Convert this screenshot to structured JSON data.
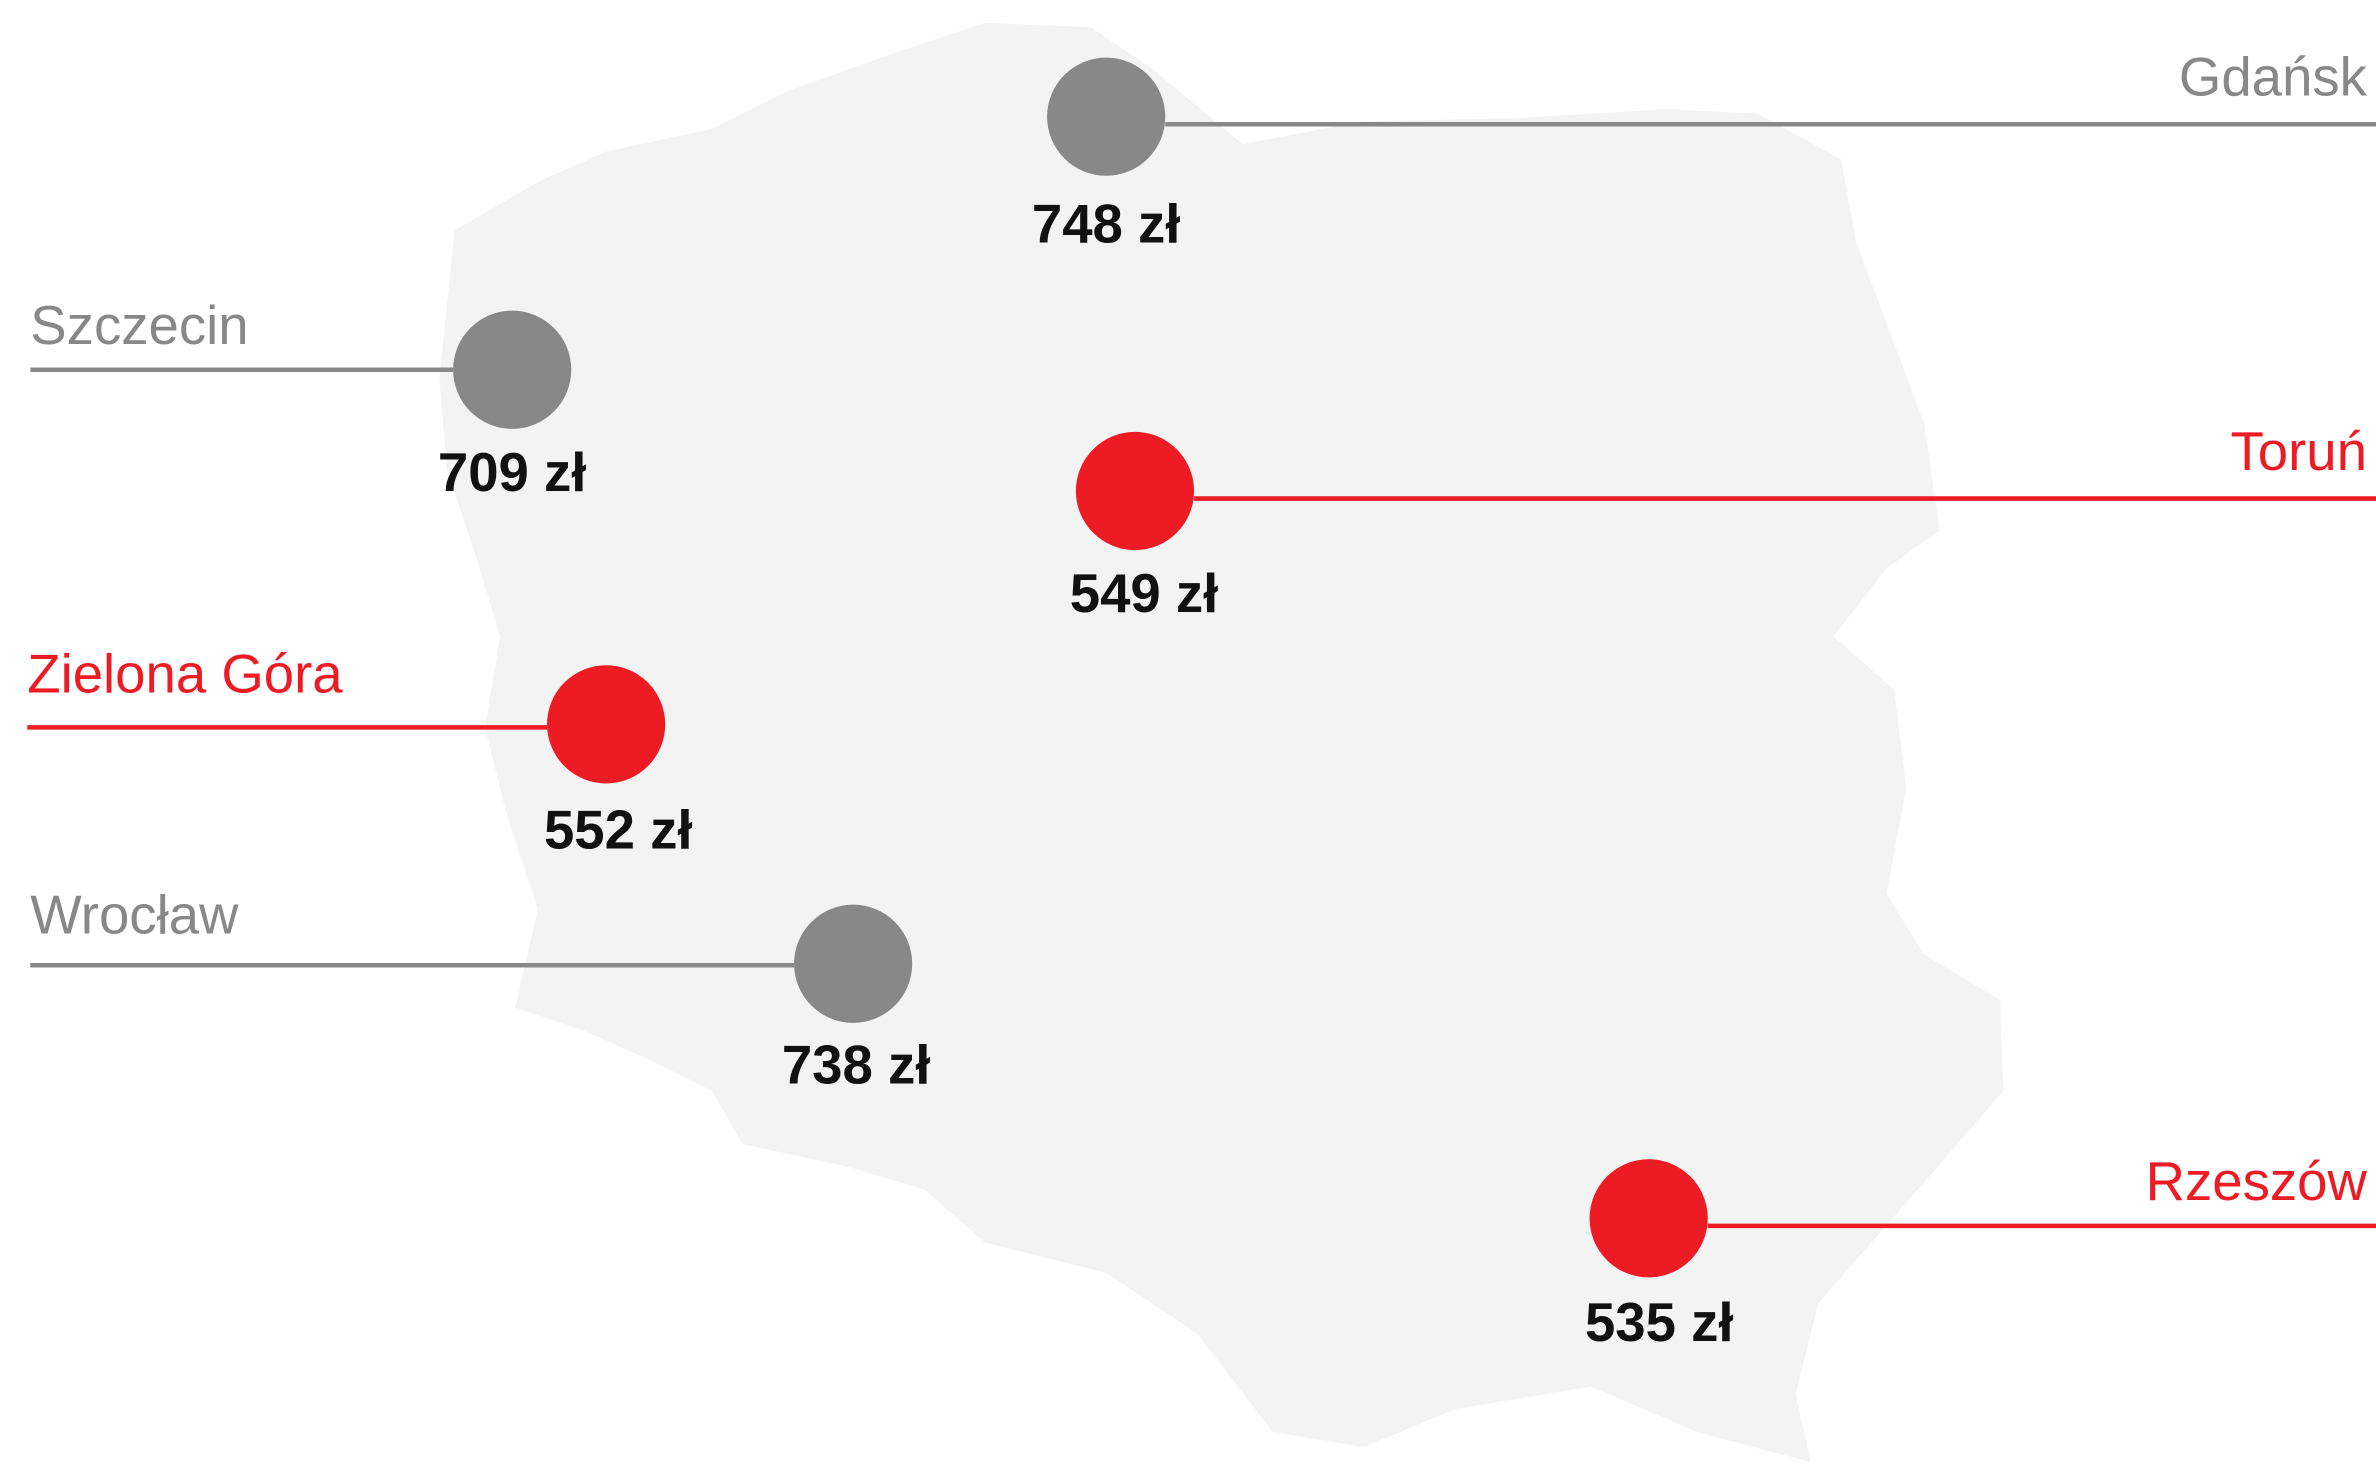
{
  "cities": [
    {
      "name": "Gdańsk",
      "price": "748 zł",
      "color": "#888888"
    },
    {
      "name": "Szczecin",
      "price": "709 zł",
      "color": "#888888"
    },
    {
      "name": "Toruń",
      "price": "549 zł",
      "color": "#ed1c24"
    },
    {
      "name": "Zielona Góra",
      "price": "552 zł",
      "color": "#ed1c24"
    },
    {
      "name": "Wrocław",
      "price": "738 zł",
      "color": "#888888"
    },
    {
      "name": "Rzeszów",
      "price": "535 zł",
      "color": "#ed1c24"
    }
  ]
}
